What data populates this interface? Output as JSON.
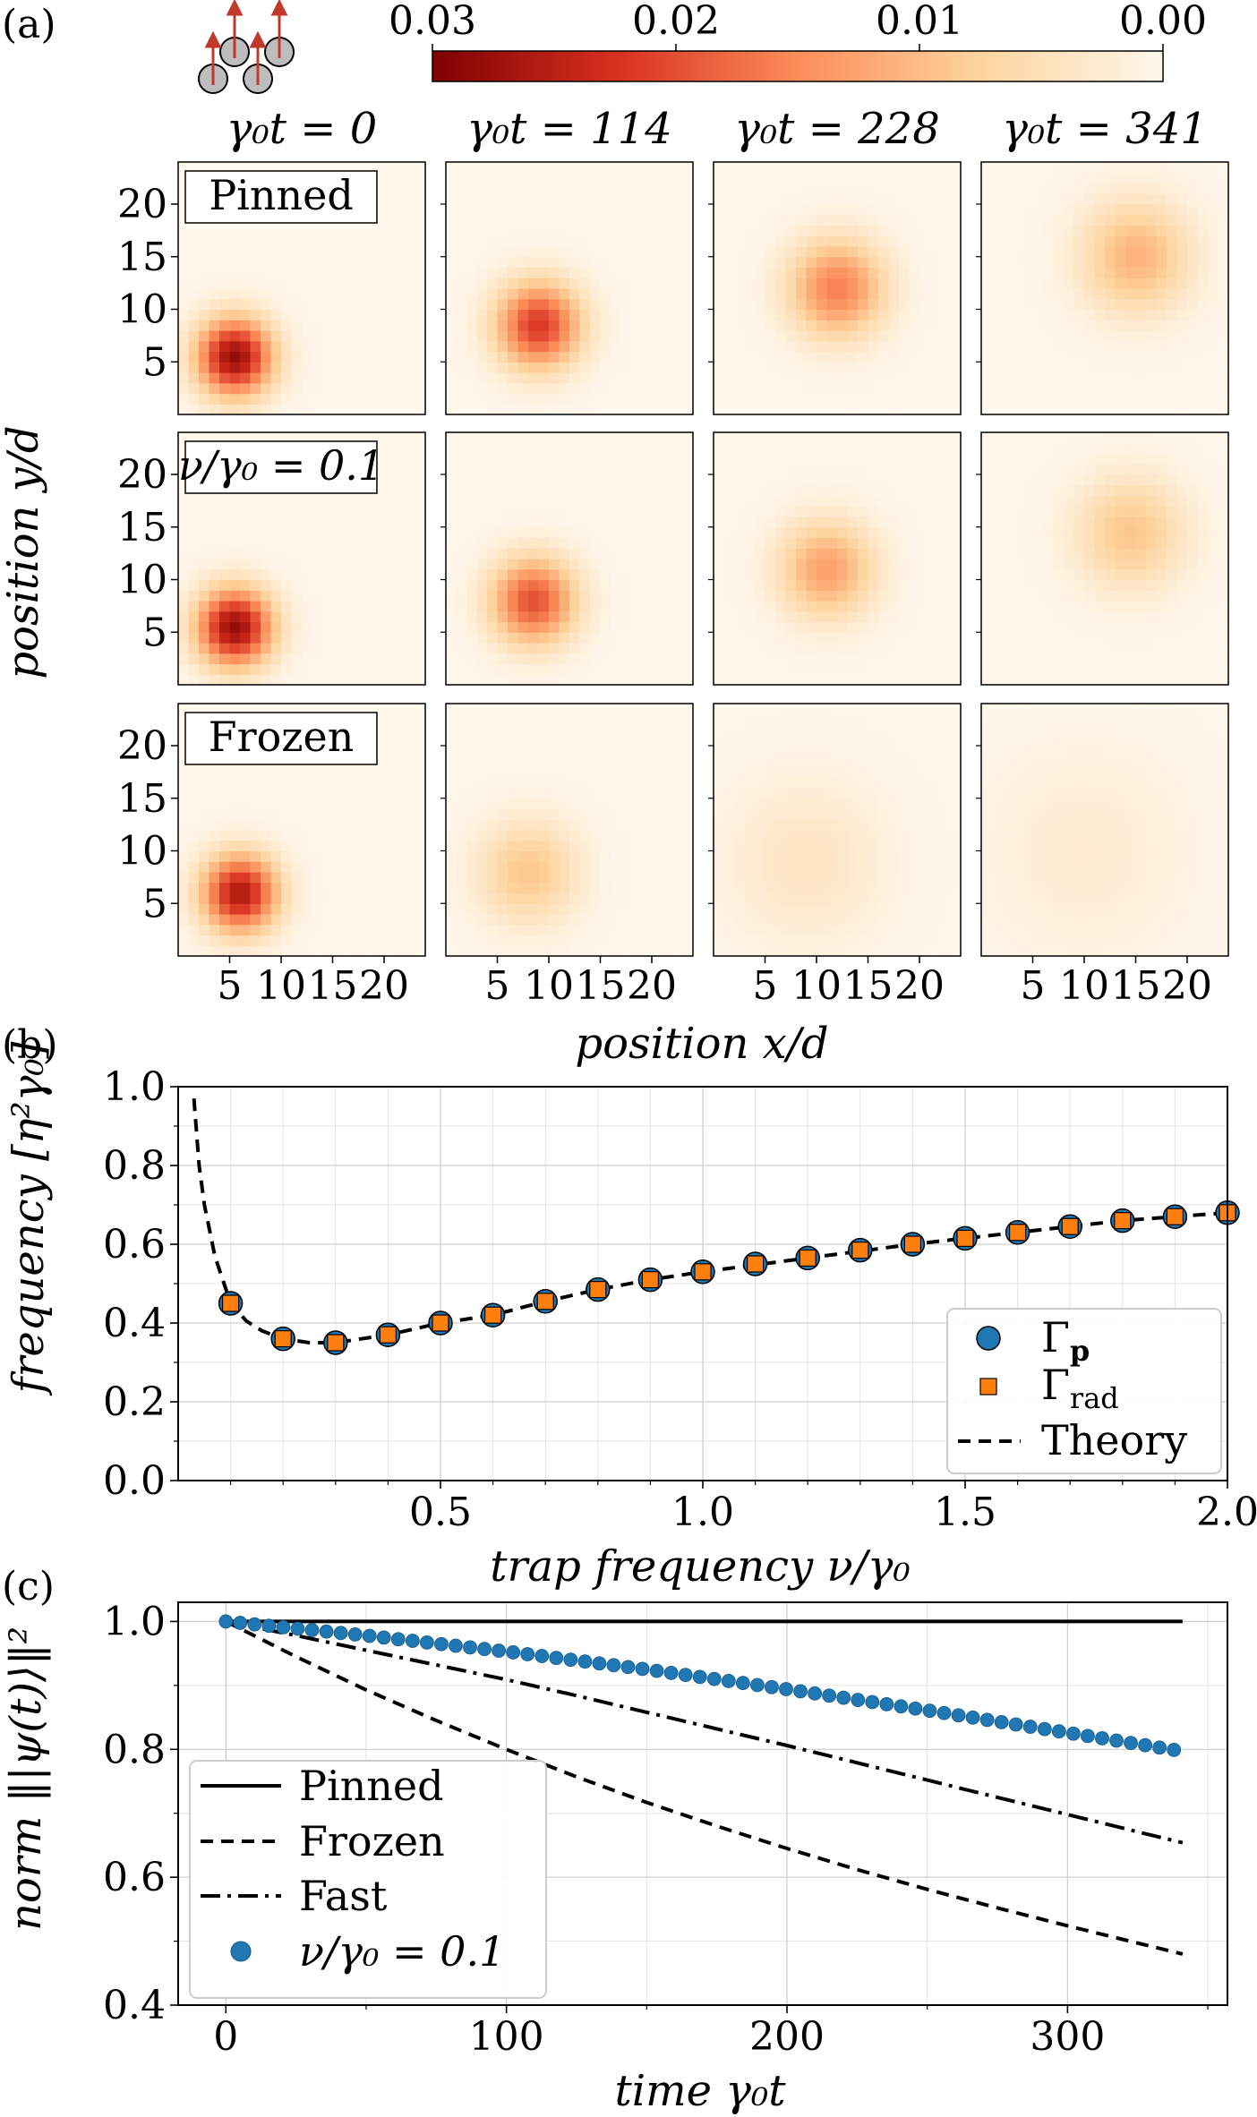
{
  "chart_data": [
    {
      "panel": "(a)",
      "type": "heatmap",
      "xlabel": "position x/d",
      "ylabel": "position y/d",
      "xticks": [
        5,
        10,
        15,
        20
      ],
      "yticks": [
        5,
        10,
        15,
        20
      ],
      "xlim": [
        0,
        24
      ],
      "ylim": [
        0,
        24
      ],
      "grid": false,
      "colorbar": {
        "ticks": [
          "0.03",
          "0.02",
          "0.01",
          "0.00"
        ],
        "range": [
          0.03,
          0.0
        ],
        "colors": [
          "#7f0000",
          "#d7301f",
          "#fc8d59",
          "#fdd49e",
          "#fff7ec"
        ]
      },
      "columns": [
        "γ₀t = 0",
        "γ₀t = 114",
        "γ₀t = 228",
        "γ₀t = 341"
      ],
      "rows": [
        {
          "label": "Pinned",
          "cells": [
            {
              "cx": 5.5,
              "cy": 5.5,
              "sigma": 2.6,
              "peak": 0.028
            },
            {
              "cx": 9.0,
              "cy": 8.5,
              "sigma": 2.9,
              "peak": 0.022
            },
            {
              "cx": 12.0,
              "cy": 12.0,
              "sigma": 3.3,
              "peak": 0.016
            },
            {
              "cx": 15.0,
              "cy": 15.0,
              "sigma": 3.8,
              "peak": 0.011
            }
          ]
        },
        {
          "label": "ν/γ₀ = 0.1",
          "cells": [
            {
              "cx": 5.5,
              "cy": 5.5,
              "sigma": 2.6,
              "peak": 0.028
            },
            {
              "cx": 8.5,
              "cy": 8.0,
              "sigma": 2.9,
              "peak": 0.02
            },
            {
              "cx": 11.0,
              "cy": 11.0,
              "sigma": 3.3,
              "peak": 0.013
            },
            {
              "cx": 14.5,
              "cy": 14.5,
              "sigma": 3.8,
              "peak": 0.009
            }
          ]
        },
        {
          "label": "Frozen",
          "cells": [
            {
              "cx": 6.0,
              "cy": 6.0,
              "sigma": 2.6,
              "peak": 0.026
            },
            {
              "cx": 8.0,
              "cy": 8.0,
              "sigma": 3.5,
              "peak": 0.009
            },
            {
              "cx": 9.0,
              "cy": 9.0,
              "sigma": 5.5,
              "peak": 0.004
            },
            {
              "cx": 10.0,
              "cy": 10.0,
              "sigma": 7.0,
              "peak": 0.0025
            }
          ]
        }
      ]
    },
    {
      "panel": "(b)",
      "type": "scatter",
      "xlabel": "trap frequency ν/γ₀",
      "ylabel": "frequency [η²γ₀]",
      "xlim": [
        0.0,
        2.0
      ],
      "ylim": [
        0.0,
        1.0
      ],
      "xticks": [
        "0.5",
        "1.0",
        "1.5",
        "2.0"
      ],
      "yticks": [
        "0.0",
        "0.2",
        "0.4",
        "0.6",
        "0.8",
        "1.0"
      ],
      "grid": true,
      "legend_position": "bottom-right",
      "x": [
        0.1,
        0.2,
        0.3,
        0.4,
        0.5,
        0.6,
        0.7,
        0.8,
        0.9,
        1.0,
        1.1,
        1.2,
        1.3,
        1.4,
        1.5,
        1.6,
        1.7,
        1.8,
        1.9,
        2.0
      ],
      "series": [
        {
          "name": "Γp",
          "marker": "circle",
          "color": "#1f77b4",
          "values": [
            0.45,
            0.36,
            0.35,
            0.37,
            0.4,
            0.42,
            0.455,
            0.485,
            0.51,
            0.53,
            0.55,
            0.565,
            0.585,
            0.6,
            0.615,
            0.63,
            0.645,
            0.66,
            0.67,
            0.68
          ]
        },
        {
          "name": "Γrad",
          "marker": "square",
          "color": "#ff7f0e",
          "values": [
            0.45,
            0.36,
            0.35,
            0.37,
            0.4,
            0.42,
            0.455,
            0.485,
            0.51,
            0.53,
            0.55,
            0.565,
            0.585,
            0.6,
            0.615,
            0.63,
            0.645,
            0.66,
            0.67,
            0.68
          ]
        },
        {
          "name": "Theory",
          "line": "dashed",
          "color": "#000000",
          "x": [
            0.03,
            0.04,
            0.05,
            0.07,
            0.1,
            0.13,
            0.16,
            0.2,
            0.25,
            0.3,
            0.4,
            0.5,
            0.6,
            0.7,
            0.8,
            0.9,
            1.0,
            1.2,
            1.4,
            1.6,
            1.8,
            2.0
          ],
          "values": [
            0.97,
            0.8,
            0.7,
            0.57,
            0.45,
            0.405,
            0.38,
            0.36,
            0.35,
            0.35,
            0.37,
            0.4,
            0.42,
            0.455,
            0.485,
            0.51,
            0.53,
            0.565,
            0.6,
            0.63,
            0.66,
            0.68
          ]
        }
      ]
    },
    {
      "panel": "(c)",
      "type": "line",
      "xlabel": "time γ₀t",
      "ylabel": "norm ‖|ψ(t)⟩‖²",
      "xlim": [
        -17,
        357
      ],
      "ylim": [
        0.4,
        1.03
      ],
      "xticks": [
        "0",
        "100",
        "200",
        "300"
      ],
      "yticks": [
        "0.4",
        "0.6",
        "0.8",
        "1.0"
      ],
      "grid": true,
      "legend_position": "bottom-left",
      "series": [
        {
          "name": "Pinned",
          "line": "solid",
          "color": "#000000",
          "x": [
            0,
            341
          ],
          "values": [
            1.0,
            1.0
          ]
        },
        {
          "name": "Frozen",
          "line": "dashed",
          "color": "#000000",
          "x": [
            0,
            25,
            50,
            75,
            100,
            125,
            150,
            175,
            200,
            225,
            250,
            275,
            300,
            325,
            341
          ],
          "values": [
            1.0,
            0.945,
            0.893,
            0.845,
            0.8,
            0.757,
            0.717,
            0.68,
            0.645,
            0.612,
            0.581,
            0.552,
            0.524,
            0.497,
            0.48
          ]
        },
        {
          "name": "Fast",
          "line": "dashdot",
          "color": "#000000",
          "x": [
            0,
            25,
            50,
            75,
            100,
            125,
            150,
            175,
            200,
            225,
            250,
            275,
            300,
            325,
            341
          ],
          "values": [
            1.0,
            0.978,
            0.955,
            0.932,
            0.909,
            0.884,
            0.858,
            0.832,
            0.806,
            0.779,
            0.752,
            0.725,
            0.698,
            0.671,
            0.654
          ]
        },
        {
          "name": "ν/γ₀ = 0.1",
          "marker": "circle",
          "color": "#1f77b4",
          "x_start": 0,
          "x_step": 5.12,
          "count": 67,
          "x_anchor": [
            0,
            50,
            100,
            150,
            200,
            250,
            300,
            341
          ],
          "values_anchor": [
            1.0,
            0.978,
            0.953,
            0.925,
            0.894,
            0.861,
            0.826,
            0.797
          ]
        }
      ]
    }
  ]
}
